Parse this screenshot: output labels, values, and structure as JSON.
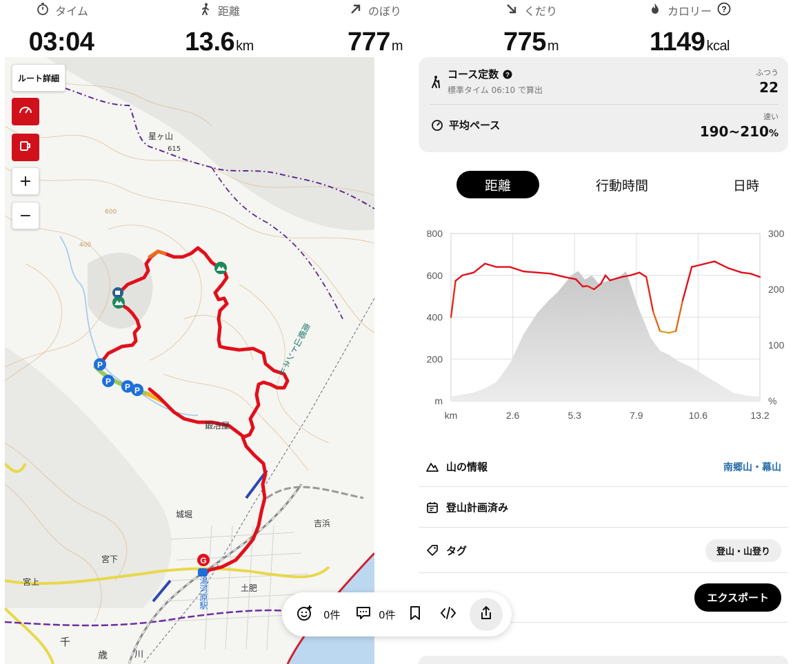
{
  "stats": [
    {
      "label": "タイム",
      "icon": "stopwatch-icon",
      "value": "03:04",
      "unit": ""
    },
    {
      "label": "距離",
      "icon": "walker-icon",
      "value": "13.6",
      "unit": "km"
    },
    {
      "label": "のぼり",
      "icon": "arrow-up-right-icon",
      "value": "777",
      "unit": "m"
    },
    {
      "label": "くだり",
      "icon": "arrow-down-right-icon",
      "value": "775",
      "unit": "m"
    },
    {
      "label": "カロリー",
      "icon": "flame-icon",
      "value": "1149",
      "unit": "kcal"
    }
  ],
  "map": {
    "route_detail_label": "ルート詳細",
    "zoom_in": "+",
    "zoom_out": "−",
    "place_labels": {
      "hoshigayama": "星ヶ山",
      "elev_615": "615",
      "contour_600": "600",
      "contour_400": "400",
      "kajiya": "鍛冶屋",
      "shirobori": "城堀",
      "miyashita": "宮下",
      "miyakami": "宮上",
      "yoshihama": "吉浜",
      "dohi": "土肥",
      "tunnel": "南郷山トンネル",
      "station": "湯河原駅",
      "chi": "千",
      "sai": "歳",
      "kawa": "川"
    },
    "route_color": "#e01020"
  },
  "course": {
    "title": "コース定数",
    "sub": "標準タイム 06:10 で算出",
    "difficulty": "ふつう",
    "value": "22",
    "pace_title": "平均ペース",
    "pace_speed": "速い",
    "pace_value": "190~210",
    "pace_unit": "%"
  },
  "tabs": {
    "distance": "距離",
    "active_time": "行動時間",
    "datetime": "日時"
  },
  "chart_data": {
    "type": "area",
    "x_ticks": [
      "km",
      "2.6",
      "5.3",
      "7.9",
      "10.6",
      "13.2"
    ],
    "y_left_ticks": [
      "800",
      "600",
      "400",
      "200",
      "m"
    ],
    "y_right_ticks": [
      "300",
      "200",
      "100",
      "%"
    ],
    "ylim_left": [
      0,
      800
    ],
    "ylim_right": [
      0,
      300
    ],
    "xlim": [
      0,
      13.6
    ],
    "elevation_series": {
      "name": "",
      "x": [
        0,
        0.5,
        1.0,
        1.5,
        2.0,
        2.6,
        3.2,
        3.8,
        4.3,
        4.7,
        5.0,
        5.3,
        5.6,
        5.9,
        6.2,
        6.5,
        6.8,
        7.1,
        7.4,
        7.7,
        7.9,
        8.2,
        8.5,
        8.8,
        9.2,
        9.6,
        10.0,
        10.6,
        11.2,
        11.8,
        12.4,
        13.0,
        13.6
      ],
      "values": [
        20,
        30,
        40,
        60,
        90,
        180,
        320,
        420,
        480,
        520,
        560,
        600,
        620,
        580,
        600,
        560,
        570,
        580,
        590,
        620,
        560,
        460,
        380,
        300,
        240,
        220,
        190,
        160,
        120,
        80,
        40,
        25,
        20
      ]
    },
    "pace_series": {
      "name": "",
      "x": [
        0,
        0.2,
        0.5,
        1.0,
        1.5,
        2.0,
        2.6,
        3.2,
        3.8,
        4.4,
        5.0,
        5.5,
        5.8,
        6.0,
        6.3,
        6.6,
        6.8,
        7.0,
        7.5,
        7.9,
        8.3,
        8.6,
        8.9,
        9.2,
        9.6,
        9.9,
        10.2,
        10.6,
        11.0,
        11.6,
        12.2,
        12.8,
        13.2,
        13.6
      ],
      "values": [
        150,
        215,
        225,
        230,
        246,
        240,
        240,
        232,
        230,
        228,
        222,
        218,
        205,
        206,
        200,
        210,
        225,
        216,
        222,
        225,
        230,
        222,
        160,
        125,
        122,
        125,
        180,
        240,
        244,
        250,
        238,
        230,
        228,
        222
      ]
    }
  },
  "info": {
    "mountains_label": "山の情報",
    "mountains_value": "南郷山・幕山",
    "plan_label": "登山計画済み",
    "tag_label": "タグ",
    "tag_value": "登山・山登り",
    "export_label": "エクスポート"
  },
  "actions": {
    "likes": "0件",
    "comments": "0件"
  }
}
